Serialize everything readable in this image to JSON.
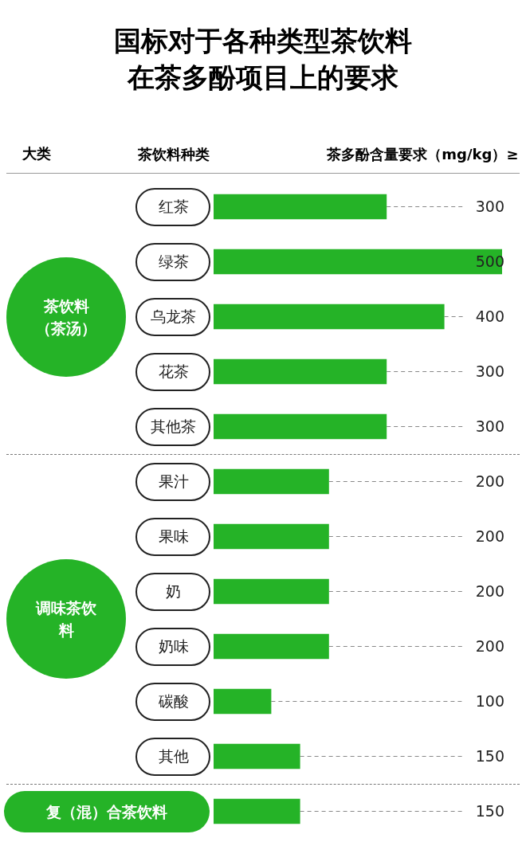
{
  "chart_data": {
    "type": "bar",
    "orientation": "horizontal",
    "title": "国标对于各种类型茶饮料在茶多酚项目上的要求",
    "xlabel": "茶多酚含量要求（mg/kg）≥",
    "ylabel": "茶饮料种类",
    "categories": [
      "红茶",
      "绿茶",
      "乌龙茶",
      "花茶",
      "其他茶",
      "果汁",
      "果味",
      "奶",
      "奶味",
      "碳酸",
      "其他",
      null
    ],
    "values": [
      300,
      500,
      400,
      300,
      300,
      200,
      200,
      200,
      200,
      100,
      150,
      150
    ],
    "color": "#25b327",
    "data_labels": true,
    "annotations": [
      "大类",
      "茶饮料（茶汤）",
      "调味茶饮料",
      "复（混）合茶饮料"
    ]
  }
}
